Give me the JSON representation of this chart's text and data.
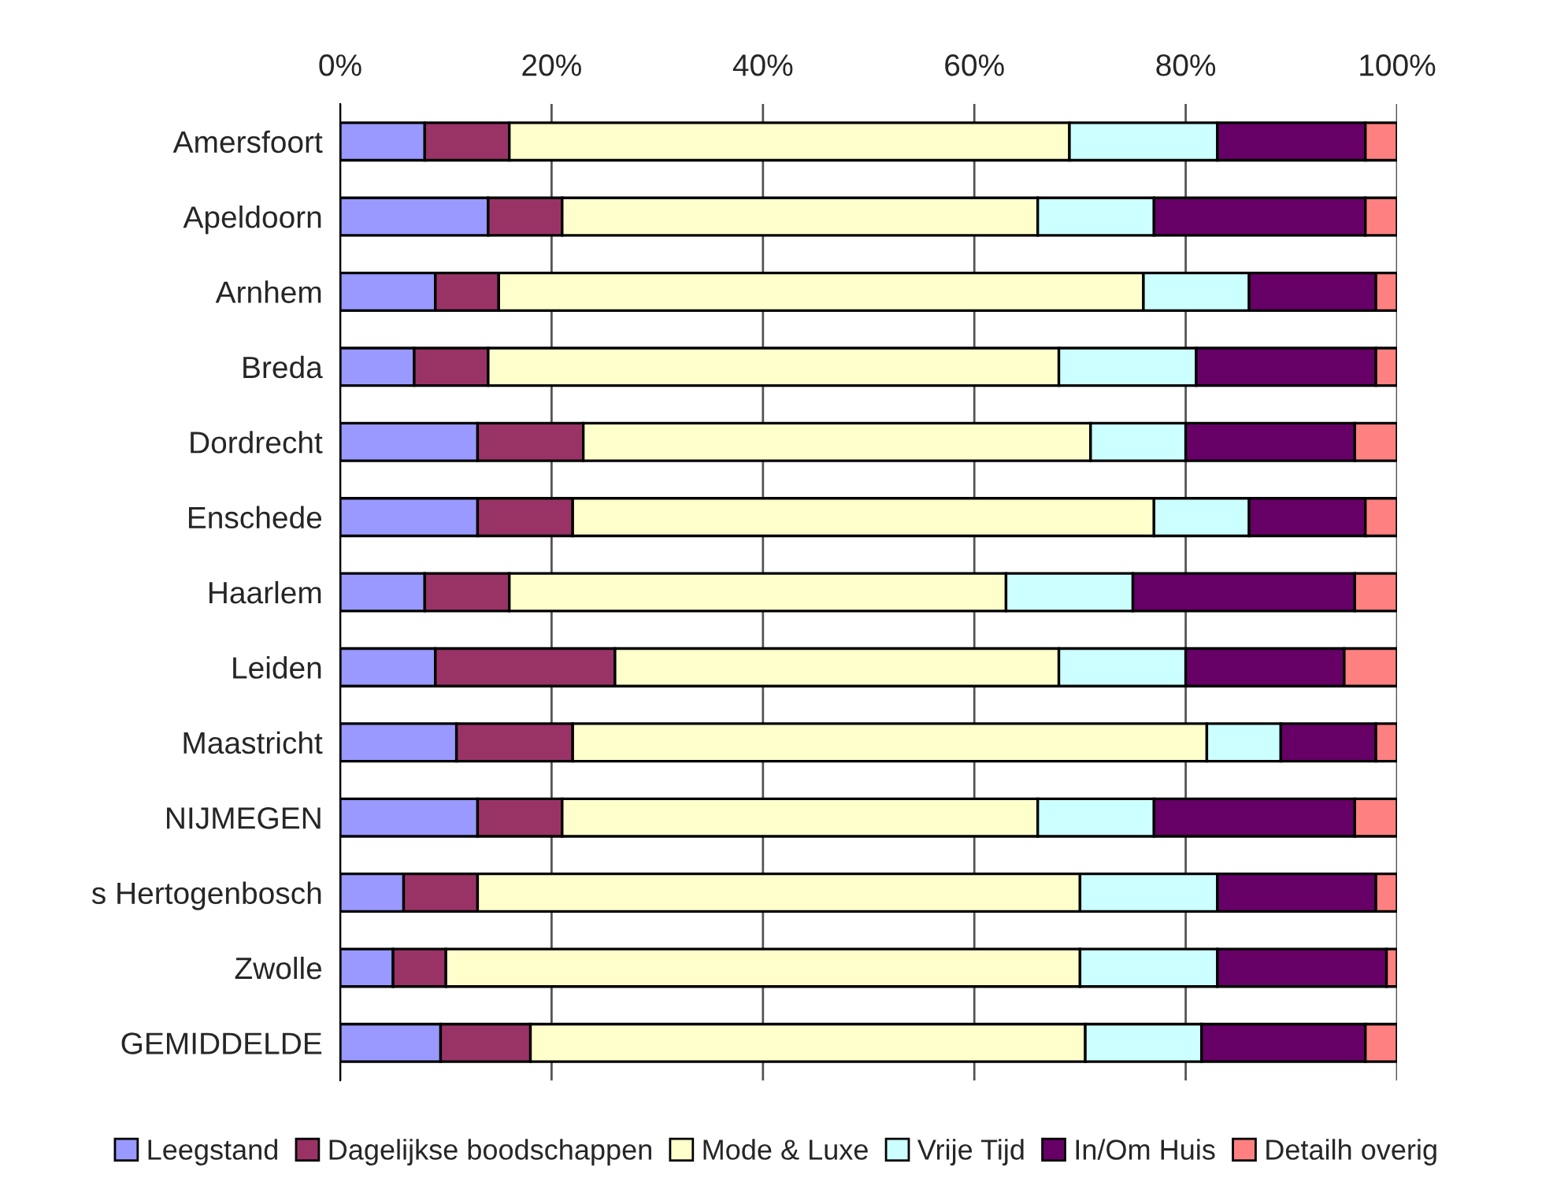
{
  "chart_data": {
    "type": "bar",
    "orientation": "horizontal",
    "stacked": true,
    "categories": [
      "Amersfoort",
      "Apeldoorn",
      "Arnhem",
      "Breda",
      "Dordrecht",
      "Enschede",
      "Haarlem",
      "Leiden",
      "Maastricht",
      "NIJMEGEN",
      "s Hertogenbosch",
      "Zwolle",
      "GEMIDDELDE"
    ],
    "series": [
      {
        "name": "Leegstand",
        "color": "#9999ff",
        "values": [
          8,
          14,
          9,
          7,
          13,
          13,
          8,
          9,
          11,
          13,
          6,
          5,
          9.5
        ]
      },
      {
        "name": "Dagelijkse boodschappen",
        "color": "#993366",
        "values": [
          8,
          7,
          6,
          7,
          10,
          9,
          8,
          17,
          11,
          8,
          7,
          5,
          8.5
        ]
      },
      {
        "name": "Mode & Luxe",
        "color": "#ffffcc",
        "values": [
          53,
          45,
          61,
          54,
          48,
          55,
          47,
          42,
          60,
          45,
          57,
          60,
          52.5
        ]
      },
      {
        "name": "Vrije Tijd",
        "color": "#ccffff",
        "values": [
          14,
          11,
          10,
          13,
          9,
          9,
          12,
          12,
          7,
          11,
          13,
          13,
          11
        ]
      },
      {
        "name": "In/Om Huis",
        "color": "#660066",
        "values": [
          14,
          20,
          12,
          17,
          16,
          11,
          21,
          15,
          9,
          19,
          15,
          16,
          15.5
        ]
      },
      {
        "name": "Detailh overig",
        "color": "#ff8080",
        "values": [
          3,
          3,
          2,
          2,
          4,
          3,
          4,
          5,
          2,
          4,
          2,
          1,
          3
        ]
      }
    ],
    "xlim": [
      0,
      100
    ],
    "xticks": [
      {
        "value": 0,
        "label": "0%"
      },
      {
        "value": 20,
        "label": "20%"
      },
      {
        "value": 40,
        "label": "40%"
      },
      {
        "value": 60,
        "label": "60%"
      },
      {
        "value": 80,
        "label": "80%"
      },
      {
        "value": 100,
        "label": "100%"
      }
    ],
    "grid": "x",
    "legend": "bottom"
  }
}
